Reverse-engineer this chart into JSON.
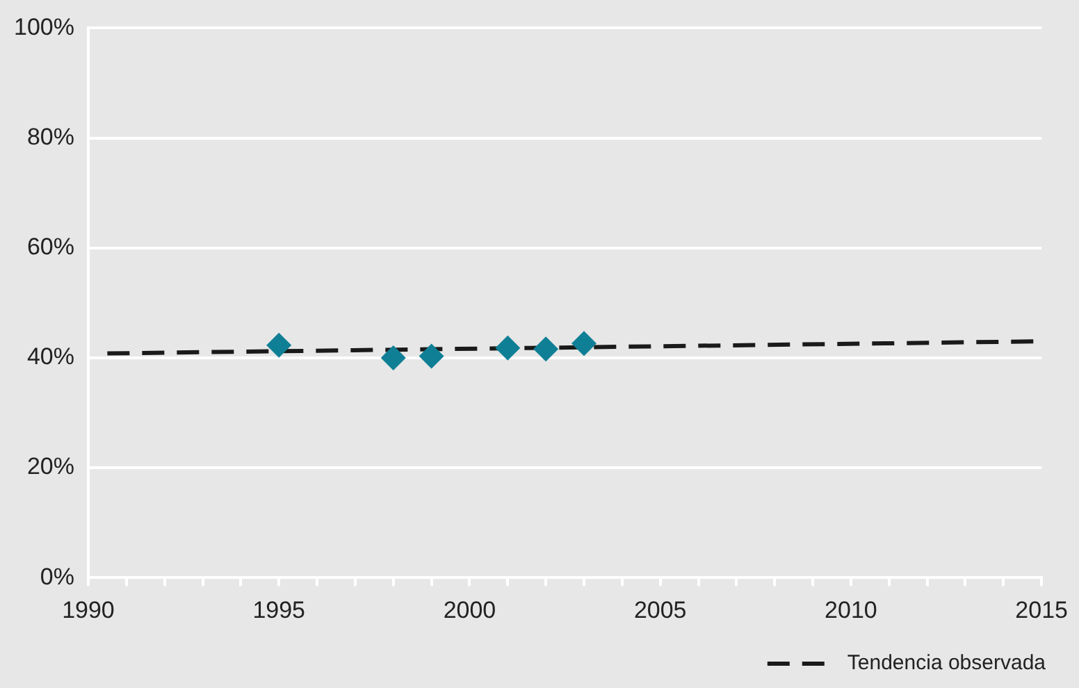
{
  "chart_data": {
    "type": "scatter",
    "marker": "diamond",
    "grid": "y",
    "legend": "bottom right",
    "xlim": [
      1990,
      2015
    ],
    "xticks": [
      1990,
      {
        "value": 1991,
        "label": null
      },
      {
        "value": 1992,
        "label": null
      },
      {
        "value": 1993,
        "label": null
      },
      {
        "value": 1994,
        "label": null
      },
      1995,
      {
        "value": 1996,
        "label": null
      },
      {
        "value": 1997,
        "label": null
      },
      {
        "value": 1998,
        "label": null
      },
      {
        "value": 1999,
        "label": null
      },
      2000,
      {
        "value": 2001,
        "label": null
      },
      {
        "value": 2002,
        "label": null
      },
      {
        "value": 2003,
        "label": null
      },
      {
        "value": 2004,
        "label": null
      },
      2005,
      {
        "value": 2006,
        "label": null
      },
      {
        "value": 2007,
        "label": null
      },
      {
        "value": 2008,
        "label": null
      },
      {
        "value": 2009,
        "label": null
      },
      2010,
      {
        "value": 2011,
        "label": null
      },
      {
        "value": 2012,
        "label": null
      },
      {
        "value": 2013,
        "label": null
      },
      {
        "value": 2014,
        "label": null
      },
      2015
    ],
    "ylim": [
      0,
      100
    ],
    "yticks": [
      {
        "value": 0,
        "label": "0%"
      },
      {
        "value": 20,
        "label": "20%"
      },
      {
        "value": 40,
        "label": "40%"
      },
      {
        "value": 60,
        "label": "60%"
      },
      {
        "value": 80,
        "label": "80%"
      },
      {
        "value": 100,
        "label": "100%"
      }
    ],
    "series": [
      {
        "type": "scatter",
        "color": "#0f7f96",
        "x": [
          1995,
          1998,
          1999,
          2001,
          2002,
          2003
        ],
        "values": [
          42.3,
          40.0,
          40.3,
          41.8,
          41.6,
          42.6
        ]
      },
      {
        "type": "line",
        "name": "Tendencia observada",
        "color": "#1a1a1a",
        "line_style": "dashed",
        "marker": "none",
        "x": [
          1990.5,
          2015
        ],
        "values": [
          40.8,
          43.0
        ]
      }
    ]
  }
}
